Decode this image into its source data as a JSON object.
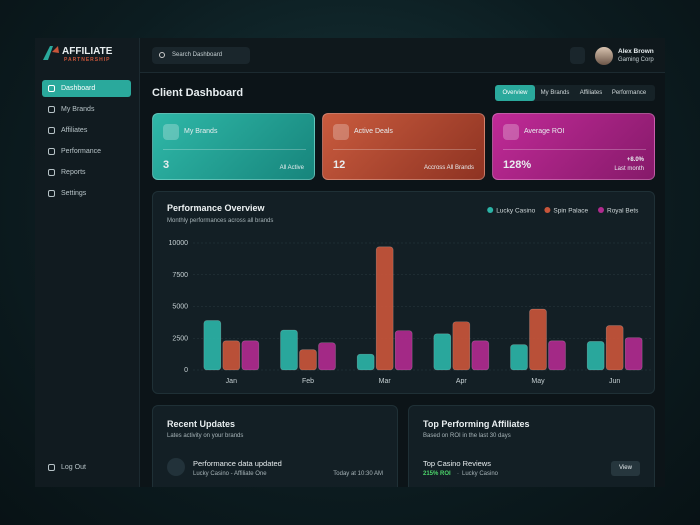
{
  "brand": {
    "name": "AFFILIATE",
    "tagline": "PARTNERSHIP"
  },
  "search": {
    "placeholder": "Search Dashboard"
  },
  "user": {
    "name": "Alex Brown",
    "company": "Gaming Corp"
  },
  "nav": [
    "Dashboard",
    "My Brands",
    "Affiliates",
    "Performance",
    "Reports",
    "Settings"
  ],
  "logout": "Log Out",
  "page_title": "Client Dashboard",
  "tabs": [
    "Overview",
    "My Brands",
    "Affiliates",
    "Performance"
  ],
  "cards": [
    {
      "title": "My Brands",
      "value": "3",
      "note": "All Active"
    },
    {
      "title": "Active Deals",
      "value": "12",
      "note": "Accross All Brands"
    },
    {
      "title": "Average ROI",
      "value": "128%",
      "change": "+8.0%",
      "note": "Last month"
    }
  ],
  "chart_data": {
    "type": "bar",
    "title": "Performance Overview",
    "subtitle": "Monthly performances across all brands",
    "categories": [
      "Jan",
      "Feb",
      "Mar",
      "Apr",
      "May",
      "Jun"
    ],
    "series": [
      {
        "name": "Lucky Casino",
        "color": "#2bb3a6",
        "values": [
          3900,
          3150,
          1250,
          2850,
          2000,
          2250
        ]
      },
      {
        "name": "Spin Palace",
        "color": "#c8553a",
        "values": [
          2300,
          1600,
          9700,
          3800,
          4800,
          3500
        ]
      },
      {
        "name": "Royal Bets",
        "color": "#b02a8e",
        "values": [
          2300,
          2150,
          3100,
          2300,
          2300,
          2550
        ]
      }
    ],
    "ylim": [
      0,
      10000
    ],
    "yticks": [
      0,
      2500,
      5000,
      7500,
      10000
    ],
    "grid": true,
    "legend": "top-right"
  },
  "updates": {
    "title": "Recent Updates",
    "subtitle": "Lates activity on your brands",
    "items": [
      {
        "title": "Performance data updated",
        "detail": "Lucky Casino - Affiliate One",
        "time": "Today at 10:30 AM"
      }
    ]
  },
  "top_affiliates": {
    "title": "Top Performing Affiliates",
    "subtitle": "Based on ROI in the last 30 days",
    "items": [
      {
        "name": "Top Casino Reviews",
        "roi": "215% ROI",
        "brand": "Lucky Casino",
        "action": "View"
      }
    ]
  }
}
